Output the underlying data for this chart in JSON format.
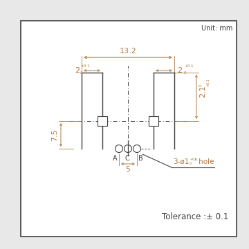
{
  "bg_color": "#e8e8e8",
  "box_color": "#ffffff",
  "line_color": "#404040",
  "dim_color": "#b07840",
  "text_color": "#404040",
  "unit_text": "Unit: mm",
  "tolerance_text": "Tolerance :± 0.1",
  "hole_text": "3-ø1",
  "hole_sup": "+0.1",
  "hole_sub": "0",
  "hole_suffix": "' hole",
  "dim_132": "13.2",
  "dim_2left": "2",
  "dim_2right": "2",
  "dim_sup": "+0.1",
  "dim_sub": "0",
  "dim_21": "2.1",
  "dim_21sup": "+0.1",
  "dim_21sub": "0",
  "dim_75": "7.5",
  "dim_5": "5",
  "label_A": "A",
  "label_C": "C",
  "label_B": "B"
}
